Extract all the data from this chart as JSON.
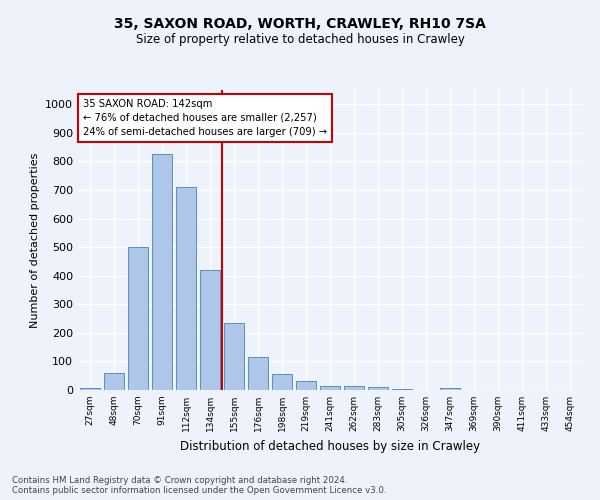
{
  "title1": "35, SAXON ROAD, WORTH, CRAWLEY, RH10 7SA",
  "title2": "Size of property relative to detached houses in Crawley",
  "xlabel": "Distribution of detached houses by size in Crawley",
  "ylabel": "Number of detached properties",
  "bin_labels": [
    "27sqm",
    "48sqm",
    "70sqm",
    "91sqm",
    "112sqm",
    "134sqm",
    "155sqm",
    "176sqm",
    "198sqm",
    "219sqm",
    "241sqm",
    "262sqm",
    "283sqm",
    "305sqm",
    "326sqm",
    "347sqm",
    "369sqm",
    "390sqm",
    "411sqm",
    "433sqm",
    "454sqm"
  ],
  "bar_values": [
    7,
    60,
    500,
    825,
    710,
    420,
    235,
    117,
    57,
    33,
    15,
    13,
    10,
    5,
    0,
    8,
    0,
    0,
    0,
    0,
    0
  ],
  "bar_color": "#aec6e8",
  "bar_edge_color": "#5a8fc2",
  "vline_color": "#cc0000",
  "annotation_text": "35 SAXON ROAD: 142sqm\n← 76% of detached houses are smaller (2,257)\n24% of semi-detached houses are larger (709) →",
  "annotation_box_color": "#ffffff",
  "annotation_box_edge_color": "#cc0000",
  "ylim": [
    0,
    1050
  ],
  "yticks": [
    0,
    100,
    200,
    300,
    400,
    500,
    600,
    700,
    800,
    900,
    1000
  ],
  "footer_text": "Contains HM Land Registry data © Crown copyright and database right 2024.\nContains public sector information licensed under the Open Government Licence v3.0.",
  "bg_color": "#eef2fb",
  "plot_bg_color": "#eef2fb"
}
